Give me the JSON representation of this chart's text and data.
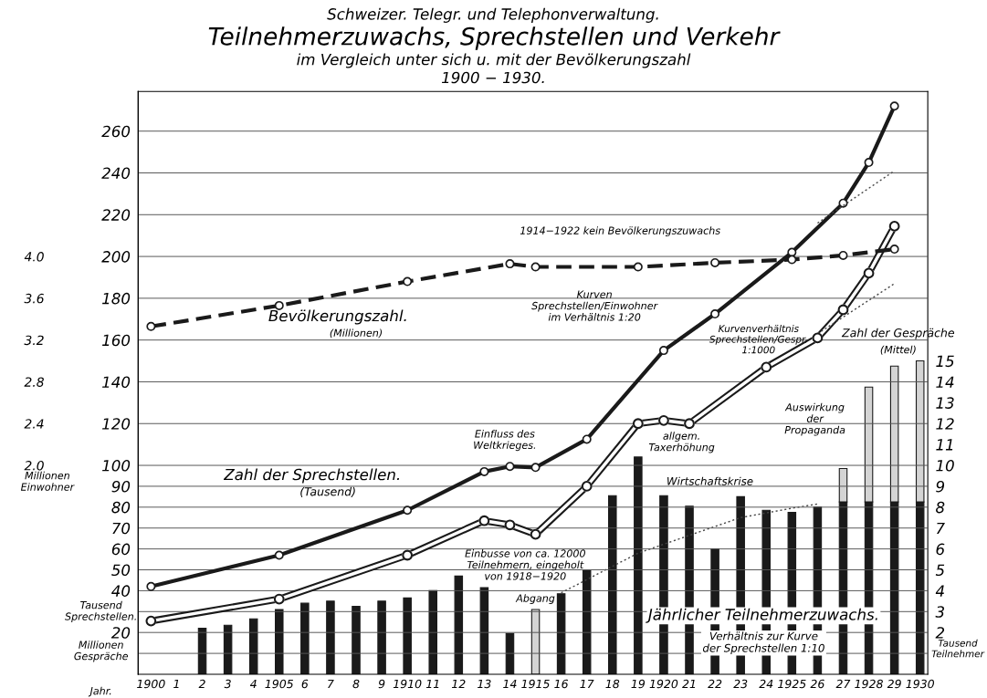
{
  "chart_data": {
    "type": "bar",
    "title": "Teilnehmerzuwachs, Sprechstellen und Verkehr",
    "subtitle": "im Vergleich unter sich u. mit der Bevölkerungszahl\n1900 − 1930.",
    "xlabel": "Jahr.",
    "ylabel": "Tausend\nSprechstellen.",
    "y2label": "Tausend\nTeilnehmer",
    "y3label": "Millionen\nEinwohner",
    "annotations": [
      "Schweizer. Telegr. und Telephonverwaltung.",
      "(Millionen)",
      "(Tausend)",
      "(Mittel)",
      "Verhältnis zur Kurve\nder Sprechstellen 1:10",
      "1914−1922 kein Bevölkerungszuwachs",
      "Kurven\nSprechstellen/Einwohner\nim Verhältnis 1:20",
      "Kurvenverhältnis\nSprechstellen/Gespr.\n1:1000",
      "Einfluss des\nWeltkrieges.",
      "allgem.\nTaxerhöhung",
      "Wirtschaftskrise",
      "Einbusse von ca. 12000\nTeilnehmern, eingeholt\nvon 1918−1920",
      "Abgang",
      "Auswirkung\nder\nPropaganda",
      "Millionen\nGespräche"
    ],
    "categories": [
      "1900",
      "1",
      "2",
      "3",
      "4",
      "1905",
      "6",
      "7",
      "8",
      "9",
      "1910",
      "11",
      "12",
      "13",
      "14",
      "1915",
      "16",
      "17",
      "18",
      "19",
      "1920",
      "21",
      "22",
      "23",
      "24",
      "1925",
      "26",
      "27",
      "1928",
      "29",
      "1930"
    ],
    "ylim": [
      0,
      279
    ],
    "yticks": [
      {
        "value": 10,
        "label": null
      },
      20,
      {
        "value": 30,
        "label": null
      },
      40,
      50,
      60,
      70,
      80,
      90,
      100,
      120,
      140,
      160,
      180,
      200,
      220,
      240,
      260
    ],
    "y2lim": [
      0,
      27.9
    ],
    "y2ticks": [
      2,
      3,
      4,
      5,
      6,
      7,
      8,
      9,
      10,
      11,
      12,
      13,
      14,
      15
    ],
    "y3lim": [
      0,
      5.58
    ],
    "y3ticks": [
      {
        "value": 2.0,
        "label": "2.0"
      },
      {
        "value": 2.4,
        "label": "2.4"
      },
      {
        "value": 2.8,
        "label": "2.8"
      },
      {
        "value": 3.2,
        "label": "3.2"
      },
      {
        "value": 3.6,
        "label": "3.6"
      },
      {
        "value": 4.0,
        "label": "4.0"
      }
    ],
    "grid": "y",
    "marker": "circle",
    "stacked": true,
    "series": [
      {
        "axis": "y2",
        "name": "Jährlicher Teilnehmerzuwachs.",
        "color": "#1a1a1a",
        "values": [
          null,
          null,
          2.2,
          2.35,
          2.65,
          3.1,
          3.4,
          3.5,
          3.25,
          3.5,
          3.65,
          4.0,
          4.7,
          4.15,
          1.95,
          null,
          3.85,
          4.95,
          8.55,
          10.4,
          8.55,
          8.05,
          6.0,
          8.5,
          7.85,
          7.75,
          8.0,
          8.25,
          8.25,
          8.25,
          8.25
        ]
      },
      {
        "axis": "y2",
        "color": "#d4d4d4",
        "values": [
          null,
          null,
          null,
          null,
          null,
          null,
          null,
          null,
          null,
          null,
          null,
          null,
          null,
          null,
          null,
          3.1,
          null,
          null,
          null,
          null,
          null,
          null,
          null,
          null,
          null,
          null,
          null,
          1.6,
          5.5,
          6.5,
          6.75
        ]
      },
      {
        "type": "line",
        "name": "Zahl der Sprechstellen.",
        "color": "#1a1a1a",
        "values": [
          42,
          null,
          null,
          null,
          null,
          57,
          null,
          null,
          null,
          null,
          78.5,
          null,
          null,
          97,
          99.5,
          99,
          null,
          112.5,
          null,
          null,
          155,
          null,
          172.5,
          null,
          null,
          202,
          null,
          225.5,
          245,
          272,
          null
        ]
      },
      {
        "type": "line",
        "name": "Zahl der Gespräche",
        "color": "#1a1a1a",
        "values": [
          25.5,
          null,
          null,
          null,
          null,
          36,
          null,
          null,
          null,
          null,
          57,
          null,
          null,
          73.5,
          71.5,
          67,
          null,
          90,
          null,
          120,
          121.5,
          120,
          null,
          null,
          147,
          null,
          161,
          174.5,
          192,
          214.5,
          null
        ]
      },
      {
        "type": "line",
        "axis": "y3",
        "name": "Bevölkerungszahl.",
        "color": "#1a1a1a",
        "line_style": "dashed",
        "values": [
          3.33,
          null,
          null,
          null,
          null,
          3.53,
          null,
          null,
          null,
          null,
          3.76,
          null,
          null,
          null,
          3.93,
          3.9,
          null,
          null,
          null,
          3.9,
          null,
          null,
          3.94,
          null,
          null,
          3.97,
          null,
          4.01,
          null,
          4.07,
          null
        ]
      },
      {
        "type": "line",
        "axis": "y2",
        "color": "#444444",
        "line_style": "dotted",
        "marker": "none",
        "values": [
          null,
          null,
          null,
          null,
          null,
          null,
          null,
          null,
          null,
          null,
          null,
          null,
          null,
          null,
          null,
          null,
          3.9,
          null,
          null,
          5.8,
          null,
          null,
          null,
          7.5,
          null,
          7.95,
          8.15,
          null,
          null,
          null,
          null
        ]
      },
      {
        "type": "line",
        "color": "#444444",
        "line_style": "dotted",
        "marker": "none",
        "values": [
          null,
          null,
          null,
          null,
          null,
          null,
          null,
          null,
          null,
          null,
          null,
          null,
          null,
          null,
          null,
          null,
          null,
          null,
          null,
          null,
          null,
          null,
          null,
          null,
          null,
          null,
          216,
          null,
          null,
          241,
          null
        ]
      },
      {
        "type": "line",
        "color": "#444444",
        "line_style": "dotted",
        "marker": "none",
        "values": [
          null,
          null,
          null,
          null,
          null,
          null,
          null,
          null,
          null,
          null,
          null,
          null,
          null,
          null,
          null,
          null,
          null,
          null,
          null,
          null,
          null,
          null,
          null,
          null,
          null,
          null,
          163,
          null,
          null,
          187,
          null
        ]
      }
    ]
  }
}
